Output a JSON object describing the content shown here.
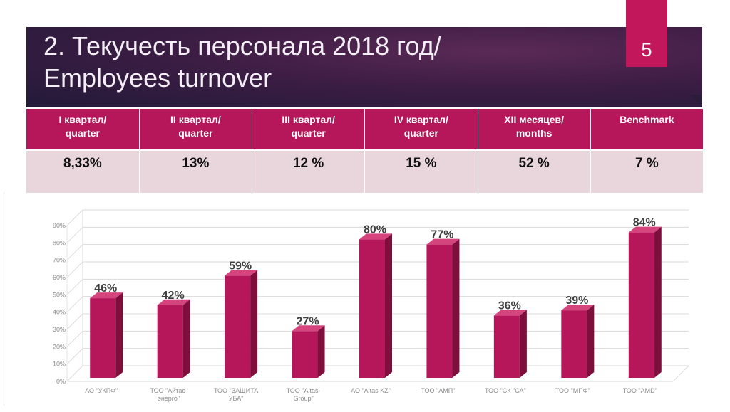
{
  "header": {
    "title_line1": "2. Текучесть персонала 2018 год/",
    "title_line2": "Employees turnover",
    "page_number": "5"
  },
  "summary_table": {
    "columns": [
      {
        "line1": "I квартал/",
        "line2": "quarter"
      },
      {
        "line1": "II квартал/",
        "line2": "quarter"
      },
      {
        "line1": "III квартал/",
        "line2": "quarter"
      },
      {
        "line1": "IV квартал/",
        "line2": "quarter"
      },
      {
        "line1": "XII месяцев/",
        "line2": "months"
      },
      {
        "line1": "Benchmark",
        "line2": ""
      }
    ],
    "values": [
      "8,33%",
      "13%",
      "12 %",
      "15 %",
      "52 %",
      "7 %"
    ]
  },
  "colors": {
    "accent": "#c2185b",
    "table_header": "#b5175a",
    "table_row": "#e8d6dc",
    "bar_front": "#b5175a",
    "bar_side": "#7e0f3d",
    "bar_top": "#d4457e"
  },
  "chart_data": {
    "type": "bar",
    "title": "",
    "xlabel": "",
    "ylabel": "",
    "ylim": [
      0,
      90
    ],
    "yticks": [
      "0%",
      "10%",
      "20%",
      "30%",
      "40%",
      "50%",
      "60%",
      "70%",
      "80%",
      "90%"
    ],
    "grid": true,
    "style": "3d",
    "categories": [
      [
        "АО \"УКПФ\""
      ],
      [
        "ТОО \"Айтас-",
        "энерго\""
      ],
      [
        "ТОО \"ЗАЩИТА",
        "УБА\""
      ],
      [
        "ТОО \"Aitas-",
        "Group\""
      ],
      [
        "АО \"Aitas KZ\""
      ],
      [
        "ТОО \"АМП\""
      ],
      [
        "ТОО \"СК \"СА\""
      ],
      [
        "ТОО \"МПФ\""
      ],
      [
        "ТОО \"AMD\""
      ]
    ],
    "values": [
      46,
      42,
      59,
      27,
      80,
      77,
      36,
      39,
      84
    ],
    "data_labels": [
      "46%",
      "42%",
      "59%",
      "27%",
      "80%",
      "77%",
      "36%",
      "39%",
      "84%"
    ]
  }
}
